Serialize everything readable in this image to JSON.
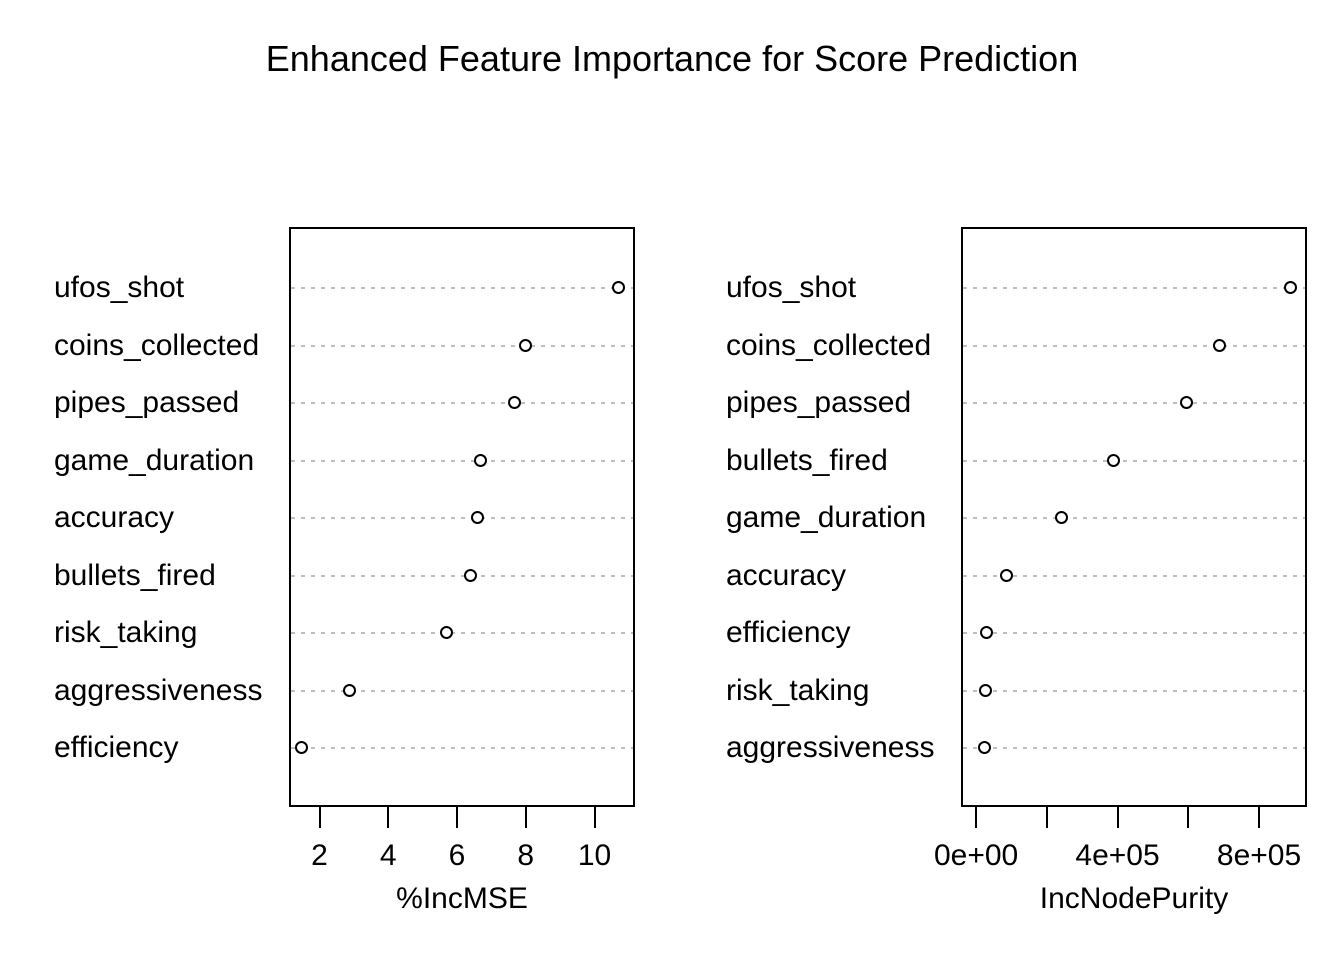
{
  "title": "Enhanced Feature Importance for Score Prediction",
  "colors": {
    "foreground": "#000000",
    "grid": "#bebebe",
    "background": "#ffffff",
    "point_fill": "#ffffff",
    "point_stroke": "#000000"
  },
  "chart_data": [
    {
      "type": "scatter",
      "subtype": "dotchart",
      "panel": "left",
      "xlabel": "%IncMSE",
      "ylabel": "",
      "categories": [
        "ufos_shot",
        "coins_collected",
        "pipes_passed",
        "game_duration",
        "accuracy",
        "bullets_fired",
        "risk_taking",
        "aggressiveness",
        "efficiency"
      ],
      "values": [
        10.7,
        8.0,
        7.7,
        6.7,
        6.6,
        6.4,
        5.7,
        2.9,
        1.5
      ],
      "xlim": [
        1.17,
        11.12
      ],
      "ticks": [
        2,
        4,
        6,
        8,
        10
      ],
      "tick_labels": [
        "2",
        "4",
        "6",
        "8",
        "10"
      ],
      "grid": "dotted horizontal per-category"
    },
    {
      "type": "scatter",
      "subtype": "dotchart",
      "panel": "right",
      "xlabel": "IncNodePurity",
      "ylabel": "",
      "categories": [
        "ufos_shot",
        "coins_collected",
        "pipes_passed",
        "bullets_fired",
        "game_duration",
        "accuracy",
        "efficiency",
        "risk_taking",
        "aggressiveness"
      ],
      "values": [
        890000,
        690000,
        595000,
        390000,
        243000,
        88000,
        31000,
        28000,
        25000
      ],
      "xlim": [
        -37000,
        930000
      ],
      "ticks": [
        0,
        200000,
        400000,
        600000,
        800000
      ],
      "tick_labels": [
        "0e+00",
        "",
        "4e+05",
        "",
        "8e+05"
      ],
      "grid": "dotted horizontal per-category"
    }
  ]
}
